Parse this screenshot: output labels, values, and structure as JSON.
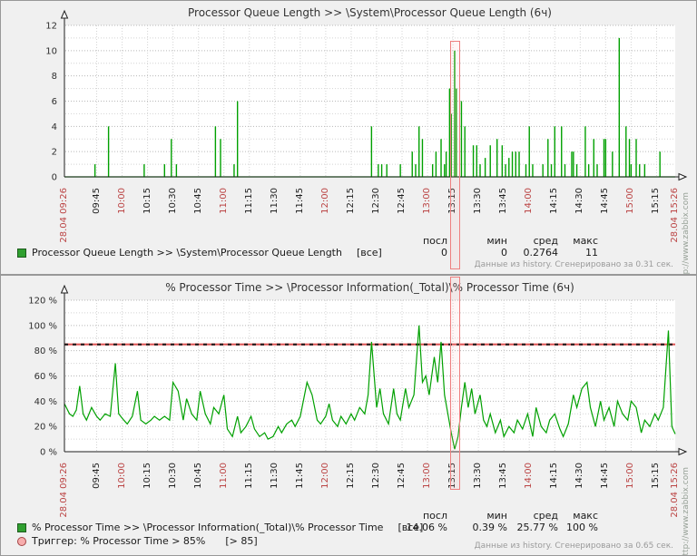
{
  "panels": [
    {
      "title": "Processor Queue Length >> \\System\\Processor Queue Length (6ч)",
      "watermark": "http://www.zabbix.com",
      "footer": "Данные из history. Сгенерировано за 0.31 сек.",
      "legend": {
        "headers": [
          "посл",
          "мин",
          "сред",
          "макс"
        ],
        "series_label": "Processor Queue Length >> \\System\\Processor Queue Length",
        "mode": "[все]",
        "values": [
          "0",
          "0",
          "0.2764",
          "11"
        ]
      }
    },
    {
      "title": "% Processor Time >> \\Processor Information(_Total)\\% Processor Time (6ч)",
      "watermark": "http://www.zabbix.com",
      "footer": "Данные из history. Сгенерировано за 0.65 сек.",
      "legend": {
        "headers": [
          "посл",
          "мин",
          "сред",
          "макс"
        ],
        "series_label": "% Processor Time >> \\Processor Information(_Total)\\% Processor Time",
        "mode": "[все]",
        "values": [
          "14.06 %",
          "0.39 %",
          "25.77 %",
          "100 %"
        ]
      },
      "trigger": {
        "label": "Триггер: % Processor Time > 85%",
        "condition": "[> 85]"
      }
    }
  ],
  "chart_data": [
    {
      "type": "bar",
      "title": "Processor Queue Length >> \\System\\Processor Queue Length (6ч)",
      "xlabel": "",
      "ylabel": "",
      "ylim": [
        0,
        12
      ],
      "grid": {
        "minor": 1,
        "major": 2,
        "on": true
      },
      "color": "#00a000",
      "legend_position": "bottom",
      "time_span_minutes": 360,
      "yticks": [
        {
          "v": 0,
          "label": "0"
        },
        {
          "v": 2,
          "label": "2"
        },
        {
          "v": 4,
          "label": "4"
        },
        {
          "v": 6,
          "label": "6"
        },
        {
          "v": 8,
          "label": "8"
        },
        {
          "v": 10,
          "label": "10"
        },
        {
          "v": 12,
          "label": "12"
        }
      ],
      "xticks": [
        {
          "m": 0,
          "label": "28.04 09:26",
          "red": true,
          "edge": true
        },
        {
          "m": 19,
          "label": "09:45",
          "red": false
        },
        {
          "m": 34,
          "label": "10:00",
          "red": true
        },
        {
          "m": 49,
          "label": "10:15",
          "red": false
        },
        {
          "m": 64,
          "label": "10:30",
          "red": false
        },
        {
          "m": 79,
          "label": "10:45",
          "red": false
        },
        {
          "m": 94,
          "label": "11:00",
          "red": true
        },
        {
          "m": 109,
          "label": "11:15",
          "red": false
        },
        {
          "m": 124,
          "label": "11:30",
          "red": false
        },
        {
          "m": 139,
          "label": "11:45",
          "red": false
        },
        {
          "m": 154,
          "label": "12:00",
          "red": true
        },
        {
          "m": 169,
          "label": "12:15",
          "red": false
        },
        {
          "m": 184,
          "label": "12:30",
          "red": false
        },
        {
          "m": 199,
          "label": "12:45",
          "red": false
        },
        {
          "m": 214,
          "label": "13:00",
          "red": true
        },
        {
          "m": 229,
          "label": "13:15",
          "red": false
        },
        {
          "m": 244,
          "label": "13:30",
          "red": false
        },
        {
          "m": 259,
          "label": "13:45",
          "red": false
        },
        {
          "m": 274,
          "label": "14:00",
          "red": true
        },
        {
          "m": 289,
          "label": "14:15",
          "red": false
        },
        {
          "m": 304,
          "label": "14:30",
          "red": false
        },
        {
          "m": 319,
          "label": "14:45",
          "red": false
        },
        {
          "m": 334,
          "label": "15:00",
          "red": true
        },
        {
          "m": 349,
          "label": "15:15",
          "red": false
        },
        {
          "m": 360,
          "label": "28.04 15:26",
          "red": true,
          "edge": true
        }
      ],
      "stats": {
        "last": 0,
        "min": 0,
        "avg": 0.2764,
        "max": 11
      },
      "bars": [
        [
          18,
          1
        ],
        [
          26,
          4
        ],
        [
          47,
          1
        ],
        [
          59,
          1
        ],
        [
          63,
          3
        ],
        [
          66,
          1
        ],
        [
          89,
          4
        ],
        [
          92,
          3
        ],
        [
          100,
          1
        ],
        [
          102,
          6
        ],
        [
          181,
          4
        ],
        [
          185,
          1
        ],
        [
          187,
          1
        ],
        [
          190,
          1
        ],
        [
          198,
          1
        ],
        [
          205,
          2
        ],
        [
          207,
          1
        ],
        [
          209,
          4
        ],
        [
          211,
          3
        ],
        [
          217,
          1
        ],
        [
          219,
          2
        ],
        [
          222,
          3
        ],
        [
          224,
          1
        ],
        [
          225,
          2
        ],
        [
          227,
          7
        ],
        [
          228,
          5
        ],
        [
          230,
          10
        ],
        [
          231,
          7
        ],
        [
          234,
          6
        ],
        [
          236,
          4
        ],
        [
          241,
          2.5
        ],
        [
          243,
          2.5
        ],
        [
          245,
          1
        ],
        [
          248,
          1.5
        ],
        [
          251,
          2.5
        ],
        [
          255,
          3
        ],
        [
          258,
          2.5
        ],
        [
          260,
          1
        ],
        [
          262,
          1.5
        ],
        [
          264,
          2
        ],
        [
          266,
          2
        ],
        [
          268,
          2
        ],
        [
          272,
          1
        ],
        [
          274,
          4
        ],
        [
          276,
          1
        ],
        [
          282,
          1
        ],
        [
          285,
          3
        ],
        [
          287,
          1
        ],
        [
          289,
          4
        ],
        [
          293,
          4
        ],
        [
          295,
          1
        ],
        [
          299,
          2
        ],
        [
          300,
          2
        ],
        [
          302,
          1
        ],
        [
          307,
          4
        ],
        [
          309,
          1
        ],
        [
          312,
          3
        ],
        [
          314,
          1
        ],
        [
          318,
          3
        ],
        [
          319,
          3
        ],
        [
          323,
          2
        ],
        [
          327,
          11
        ],
        [
          331,
          4
        ],
        [
          333,
          3
        ],
        [
          334,
          1
        ],
        [
          337,
          3
        ],
        [
          339,
          1
        ],
        [
          342,
          1
        ],
        [
          351,
          2
        ]
      ]
    },
    {
      "type": "line",
      "title": "% Processor Time >> \\Processor Information(_Total)\\% Processor Time (6ч)",
      "xlabel": "",
      "ylabel": "%",
      "ylim": [
        0,
        120
      ],
      "grid": {
        "minor": 10,
        "major": 20,
        "on": true
      },
      "color": "#00a000",
      "legend_position": "bottom",
      "time_span_minutes": 360,
      "trigger_value": 85,
      "trigger_label": "Триггер: % Processor Time > 85%",
      "yticks": [
        {
          "v": 0,
          "label": "0 %"
        },
        {
          "v": 20,
          "label": "20 %"
        },
        {
          "v": 40,
          "label": "40 %"
        },
        {
          "v": 60,
          "label": "60 %"
        },
        {
          "v": 80,
          "label": "80 %"
        },
        {
          "v": 100,
          "label": "100 %"
        },
        {
          "v": 120,
          "label": "120 %"
        }
      ],
      "xticks": [
        {
          "m": 0,
          "label": "28.04 09:26",
          "red": true,
          "edge": true
        },
        {
          "m": 19,
          "label": "09:45",
          "red": false
        },
        {
          "m": 34,
          "label": "10:00",
          "red": true
        },
        {
          "m": 49,
          "label": "10:15",
          "red": false
        },
        {
          "m": 64,
          "label": "10:30",
          "red": false
        },
        {
          "m": 79,
          "label": "10:45",
          "red": false
        },
        {
          "m": 94,
          "label": "11:00",
          "red": true
        },
        {
          "m": 109,
          "label": "11:15",
          "red": false
        },
        {
          "m": 124,
          "label": "11:30",
          "red": false
        },
        {
          "m": 139,
          "label": "11:45",
          "red": false
        },
        {
          "m": 154,
          "label": "12:00",
          "red": true
        },
        {
          "m": 169,
          "label": "12:15",
          "red": false
        },
        {
          "m": 184,
          "label": "12:30",
          "red": false
        },
        {
          "m": 199,
          "label": "12:45",
          "red": false
        },
        {
          "m": 214,
          "label": "13:00",
          "red": true
        },
        {
          "m": 229,
          "label": "13:15",
          "red": false
        },
        {
          "m": 244,
          "label": "13:30",
          "red": false
        },
        {
          "m": 259,
          "label": "13:45",
          "red": false
        },
        {
          "m": 274,
          "label": "14:00",
          "red": true
        },
        {
          "m": 289,
          "label": "14:15",
          "red": false
        },
        {
          "m": 304,
          "label": "14:30",
          "red": false
        },
        {
          "m": 319,
          "label": "14:45",
          "red": false
        },
        {
          "m": 334,
          "label": "15:00",
          "red": true
        },
        {
          "m": 349,
          "label": "15:15",
          "red": false
        },
        {
          "m": 360,
          "label": "28.04 15:26",
          "red": true,
          "edge": true
        }
      ],
      "stats": {
        "last": "14.06 %",
        "min": "0.39 %",
        "avg": "25.77 %",
        "max": "100 %"
      },
      "points": [
        [
          0,
          38
        ],
        [
          3,
          30
        ],
        [
          5,
          28
        ],
        [
          7,
          33
        ],
        [
          9,
          52
        ],
        [
          11,
          30
        ],
        [
          13,
          25
        ],
        [
          16,
          35
        ],
        [
          19,
          28
        ],
        [
          21,
          25
        ],
        [
          24,
          30
        ],
        [
          27,
          28
        ],
        [
          30,
          70
        ],
        [
          32,
          30
        ],
        [
          35,
          25
        ],
        [
          37,
          22
        ],
        [
          40,
          28
        ],
        [
          43,
          48
        ],
        [
          45,
          25
        ],
        [
          48,
          22
        ],
        [
          51,
          25
        ],
        [
          53,
          28
        ],
        [
          56,
          25
        ],
        [
          59,
          28
        ],
        [
          62,
          25
        ],
        [
          64,
          55
        ],
        [
          67,
          48
        ],
        [
          70,
          25
        ],
        [
          72,
          42
        ],
        [
          75,
          30
        ],
        [
          78,
          25
        ],
        [
          80,
          48
        ],
        [
          83,
          30
        ],
        [
          86,
          22
        ],
        [
          88,
          35
        ],
        [
          91,
          30
        ],
        [
          94,
          45
        ],
        [
          96,
          18
        ],
        [
          99,
          12
        ],
        [
          102,
          28
        ],
        [
          104,
          15
        ],
        [
          107,
          20
        ],
        [
          110,
          28
        ],
        [
          112,
          18
        ],
        [
          115,
          12
        ],
        [
          118,
          15
        ],
        [
          120,
          10
        ],
        [
          123,
          12
        ],
        [
          126,
          20
        ],
        [
          128,
          15
        ],
        [
          131,
          22
        ],
        [
          134,
          25
        ],
        [
          136,
          20
        ],
        [
          139,
          28
        ],
        [
          143,
          55
        ],
        [
          146,
          45
        ],
        [
          149,
          25
        ],
        [
          151,
          22
        ],
        [
          154,
          28
        ],
        [
          156,
          38
        ],
        [
          158,
          25
        ],
        [
          161,
          20
        ],
        [
          163,
          28
        ],
        [
          166,
          22
        ],
        [
          169,
          30
        ],
        [
          171,
          25
        ],
        [
          174,
          35
        ],
        [
          177,
          30
        ],
        [
          179,
          45
        ],
        [
          181,
          87
        ],
        [
          184,
          35
        ],
        [
          186,
          50
        ],
        [
          188,
          30
        ],
        [
          191,
          22
        ],
        [
          194,
          50
        ],
        [
          196,
          30
        ],
        [
          198,
          25
        ],
        [
          201,
          50
        ],
        [
          203,
          35
        ],
        [
          206,
          45
        ],
        [
          209,
          100
        ],
        [
          211,
          55
        ],
        [
          213,
          60
        ],
        [
          215,
          45
        ],
        [
          218,
          75
        ],
        [
          220,
          55
        ],
        [
          222,
          87
        ],
        [
          224,
          45
        ],
        [
          226,
          30
        ],
        [
          228,
          15
        ],
        [
          230,
          2
        ],
        [
          232,
          12
        ],
        [
          234,
          35
        ],
        [
          236,
          55
        ],
        [
          238,
          35
        ],
        [
          240,
          50
        ],
        [
          242,
          30
        ],
        [
          245,
          45
        ],
        [
          247,
          25
        ],
        [
          249,
          20
        ],
        [
          251,
          30
        ],
        [
          254,
          15
        ],
        [
          257,
          25
        ],
        [
          259,
          12
        ],
        [
          262,
          20
        ],
        [
          265,
          15
        ],
        [
          267,
          25
        ],
        [
          270,
          18
        ],
        [
          273,
          30
        ],
        [
          276,
          12
        ],
        [
          278,
          35
        ],
        [
          281,
          20
        ],
        [
          284,
          15
        ],
        [
          286,
          25
        ],
        [
          289,
          30
        ],
        [
          292,
          18
        ],
        [
          294,
          12
        ],
        [
          297,
          22
        ],
        [
          300,
          45
        ],
        [
          302,
          35
        ],
        [
          305,
          50
        ],
        [
          308,
          55
        ],
        [
          310,
          35
        ],
        [
          313,
          20
        ],
        [
          316,
          40
        ],
        [
          318,
          25
        ],
        [
          321,
          35
        ],
        [
          324,
          20
        ],
        [
          326,
          40
        ],
        [
          329,
          30
        ],
        [
          332,
          25
        ],
        [
          334,
          40
        ],
        [
          337,
          35
        ],
        [
          340,
          15
        ],
        [
          342,
          25
        ],
        [
          345,
          20
        ],
        [
          348,
          30
        ],
        [
          350,
          25
        ],
        [
          353,
          35
        ],
        [
          356,
          96
        ],
        [
          358,
          20
        ],
        [
          360,
          14
        ]
      ]
    }
  ]
}
